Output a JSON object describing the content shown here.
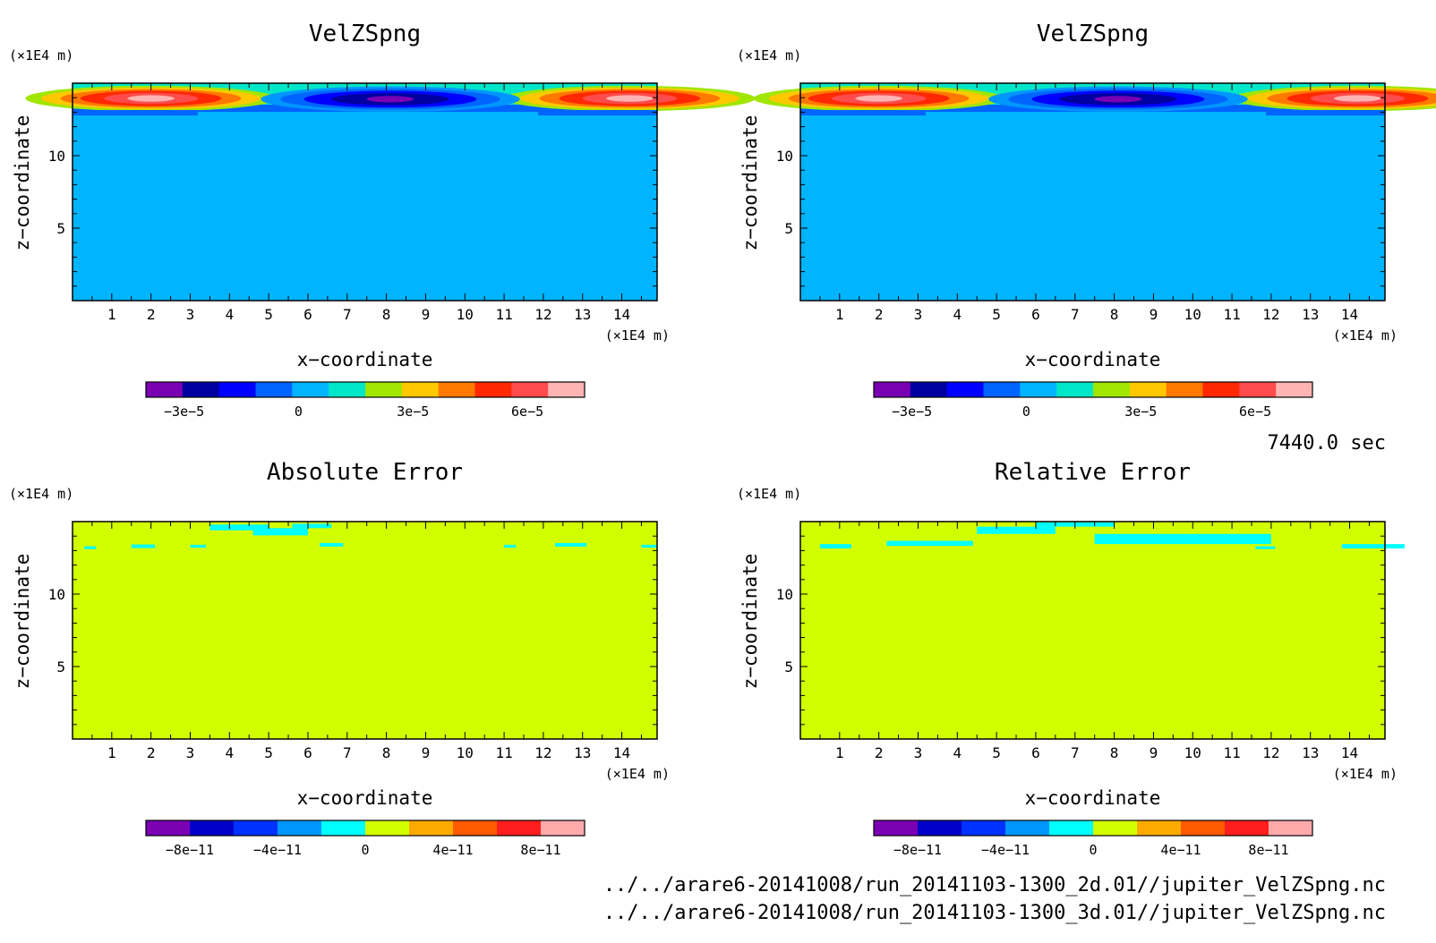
{
  "time_label": "7440.0 sec",
  "footer_files": [
    "../../arare6-20141008/run_20141103-1300_2d.01//jupiter_VelZSpng.nc",
    "../../arare6-20141008/run_20141103-1300_3d.01//jupiter_VelZSpng.nc"
  ],
  "colors": {
    "background_field": "#00b4ff",
    "error_field": "#d2ff00",
    "error_patch": "#00ffff"
  },
  "chart_data": [
    {
      "type": "heatmap",
      "title": "VelZSpng",
      "xlabel": "x−coordinate",
      "ylabel": "z−coordinate",
      "x_unit": "(×1E4 m)",
      "y_unit": "(×1E4 m)",
      "xlim": [
        0,
        14.9
      ],
      "ylim": [
        0,
        15
      ],
      "x_ticks": [
        "1",
        "2",
        "3",
        "4",
        "5",
        "6",
        "7",
        "8",
        "9",
        "10",
        "11",
        "12",
        "13",
        "14"
      ],
      "y_ticks": [
        "5",
        "10"
      ],
      "field": "sponge-layer vertical velocity: near zero below z≈13, positive lobes (up to ~7e-5) near x≈2 and x≈14 and negative lobe (~-3e-5) near x≈8 at z≈13.5–14.5",
      "colorbar": {
        "colors": [
          "#7a00b4",
          "#0000a0",
          "#0000ff",
          "#0064ff",
          "#00b4ff",
          "#00e6c8",
          "#a0e600",
          "#ffc800",
          "#ff7800",
          "#ff2800",
          "#ff4b4b",
          "#ffb4b4"
        ],
        "tick_labels": [
          "−3e−5",
          "0",
          "3e−5",
          "6e−5"
        ],
        "tick_values": [
          -3e-05,
          0,
          3e-05,
          6e-05
        ],
        "range": [
          -4e-05,
          7.5e-05
        ]
      }
    },
    {
      "type": "heatmap",
      "title": "VelZSpng",
      "xlabel": "x−coordinate",
      "ylabel": "z−coordinate",
      "x_unit": "(×1E4 m)",
      "y_unit": "(×1E4 m)",
      "xlim": [
        0,
        14.9
      ],
      "ylim": [
        0,
        15
      ],
      "x_ticks": [
        "1",
        "2",
        "3",
        "4",
        "5",
        "6",
        "7",
        "8",
        "9",
        "10",
        "11",
        "12",
        "13",
        "14"
      ],
      "y_ticks": [
        "5",
        "10"
      ],
      "field": "identical to left panel",
      "colorbar": {
        "colors": [
          "#7a00b4",
          "#0000a0",
          "#0000ff",
          "#0064ff",
          "#00b4ff",
          "#00e6c8",
          "#a0e600",
          "#ffc800",
          "#ff7800",
          "#ff2800",
          "#ff4b4b",
          "#ffb4b4"
        ],
        "tick_labels": [
          "−3e−5",
          "0",
          "3e−5",
          "6e−5"
        ],
        "tick_values": [
          -3e-05,
          0,
          3e-05,
          6e-05
        ],
        "range": [
          -4e-05,
          7.5e-05
        ]
      }
    },
    {
      "type": "heatmap",
      "title": "Absolute Error",
      "xlabel": "x−coordinate",
      "ylabel": "z−coordinate",
      "x_unit": "(×1E4 m)",
      "y_unit": "(×1E4 m)",
      "xlim": [
        0,
        14.9
      ],
      "ylim": [
        0,
        15
      ],
      "x_ticks": [
        "1",
        "2",
        "3",
        "4",
        "5",
        "6",
        "7",
        "8",
        "9",
        "10",
        "11",
        "12",
        "13",
        "14"
      ],
      "y_ticks": [
        "5",
        "10"
      ],
      "field": "zero almost everywhere; small slightly-negative patches near z≈13–15 for x≈4–6",
      "colorbar": {
        "colors": [
          "#7a00b4",
          "#0000c8",
          "#0032ff",
          "#0096ff",
          "#00ffff",
          "#d2ff00",
          "#ffaa00",
          "#ff5a00",
          "#ff1e1e",
          "#ffaaaa"
        ],
        "tick_labels": [
          "−8e−11",
          "−4e−11",
          "0",
          "4e−11",
          "8e−11"
        ],
        "tick_values": [
          -8e-11,
          -4e-11,
          0,
          4e-11,
          8e-11
        ],
        "range": [
          -1e-10,
          1e-10
        ]
      }
    },
    {
      "type": "heatmap",
      "title": "Relative Error",
      "xlabel": "x−coordinate",
      "ylabel": "z−coordinate",
      "x_unit": "(×1E4 m)",
      "y_unit": "(×1E4 m)",
      "xlim": [
        0,
        14.9
      ],
      "ylim": [
        0,
        15
      ],
      "x_ticks": [
        "1",
        "2",
        "3",
        "4",
        "5",
        "6",
        "7",
        "8",
        "9",
        "10",
        "11",
        "12",
        "13",
        "14"
      ],
      "y_ticks": [
        "5",
        "10"
      ],
      "field": "zero almost everywhere; slightly-negative band near z≈13–15, widest for x≈6–10",
      "colorbar": {
        "colors": [
          "#7a00b4",
          "#0000c8",
          "#0032ff",
          "#0096ff",
          "#00ffff",
          "#d2ff00",
          "#ffaa00",
          "#ff5a00",
          "#ff1e1e",
          "#ffaaaa"
        ],
        "tick_labels": [
          "−8e−11",
          "−4e−11",
          "0",
          "4e−11",
          "8e−11"
        ],
        "tick_values": [
          -8e-11,
          -4e-11,
          0,
          4e-11,
          8e-11
        ],
        "range": [
          -1e-10,
          1e-10
        ]
      }
    }
  ]
}
